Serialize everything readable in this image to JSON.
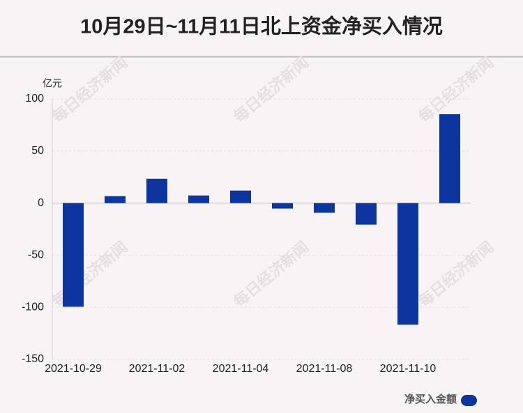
{
  "chart_data": {
    "type": "bar",
    "title": "10月29日~11月11日北上资金净买入情况",
    "unit_label": "亿元",
    "watermark": "每日经济新闻",
    "categories": [
      "2021-10-29",
      null,
      "2021-11-02",
      null,
      "2021-11-04",
      null,
      "2021-11-08",
      null,
      "2021-11-10",
      null
    ],
    "series": [
      {
        "name": "净买入金额",
        "color": "#0d35a0",
        "values": [
          -99.5,
          6.7,
          23.3,
          7.3,
          12,
          -5.3,
          -9.3,
          -20.7,
          -116.7,
          85.3
        ]
      }
    ],
    "ylim": [
      -150,
      100
    ],
    "yticks": [
      -150,
      -100,
      -50,
      0,
      50,
      100
    ],
    "grid": true,
    "legend": "bottom-right"
  }
}
